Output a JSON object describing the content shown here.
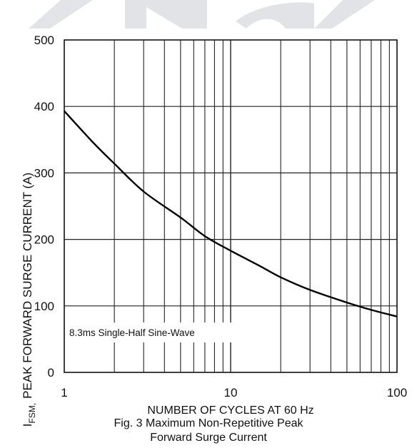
{
  "chart_data": {
    "type": "line",
    "title": "",
    "xlabel": "NUMBER OF CYCLES AT 60 Hz",
    "ylabel_prefix": "I",
    "ylabel_sub": "FSM,",
    "ylabel": "PEAK FORWARD SURGE CURRENT (A)",
    "x_scale": "log",
    "xlim": [
      1,
      100
    ],
    "ylim": [
      0,
      500
    ],
    "grid": true,
    "x_ticks": [
      "1",
      "10",
      "100"
    ],
    "y_ticks": [
      "0",
      "100",
      "200",
      "300",
      "400",
      "500"
    ],
    "annotation": "8.3ms Single-Half Sine-Wave",
    "series": [
      {
        "x": [
          1,
          1.5,
          2,
          3,
          5,
          7,
          10,
          15,
          20,
          30,
          50,
          70,
          100
        ],
        "values": [
          393,
          345,
          314,
          272,
          233,
          205,
          183,
          160,
          143,
          124,
          105,
          94,
          84
        ]
      }
    ],
    "colors": {
      "line": "#000000",
      "grid": "#222222",
      "watermark": "#7d8590"
    }
  },
  "caption": {
    "line1": "Fig. 3  Maximum Non-Repetitive Peak",
    "line2": "Forward Surge Current"
  }
}
